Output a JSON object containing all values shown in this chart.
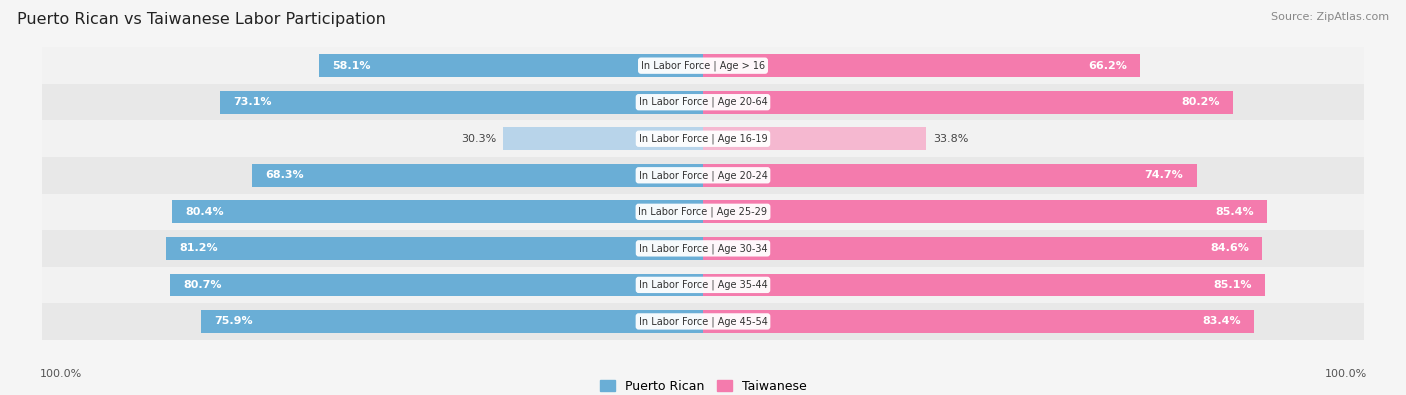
{
  "title": "Puerto Rican vs Taiwanese Labor Participation",
  "source": "Source: ZipAtlas.com",
  "categories": [
    "In Labor Force | Age > 16",
    "In Labor Force | Age 20-64",
    "In Labor Force | Age 16-19",
    "In Labor Force | Age 20-24",
    "In Labor Force | Age 25-29",
    "In Labor Force | Age 30-34",
    "In Labor Force | Age 35-44",
    "In Labor Force | Age 45-54"
  ],
  "puerto_rican": [
    58.1,
    73.1,
    30.3,
    68.3,
    80.4,
    81.2,
    80.7,
    75.9
  ],
  "taiwanese": [
    66.2,
    80.2,
    33.8,
    74.7,
    85.4,
    84.6,
    85.1,
    83.4
  ],
  "pr_color_dark": "#6aaed6",
  "pr_color_light": "#b8d4ea",
  "tw_color_dark": "#f47bad",
  "tw_color_light": "#f5b8d0",
  "row_bg_light": "#f2f2f2",
  "row_bg_dark": "#e8e8e8",
  "max_val": 100.0,
  "background_color": "#f5f5f5",
  "label_threshold": 50.0
}
